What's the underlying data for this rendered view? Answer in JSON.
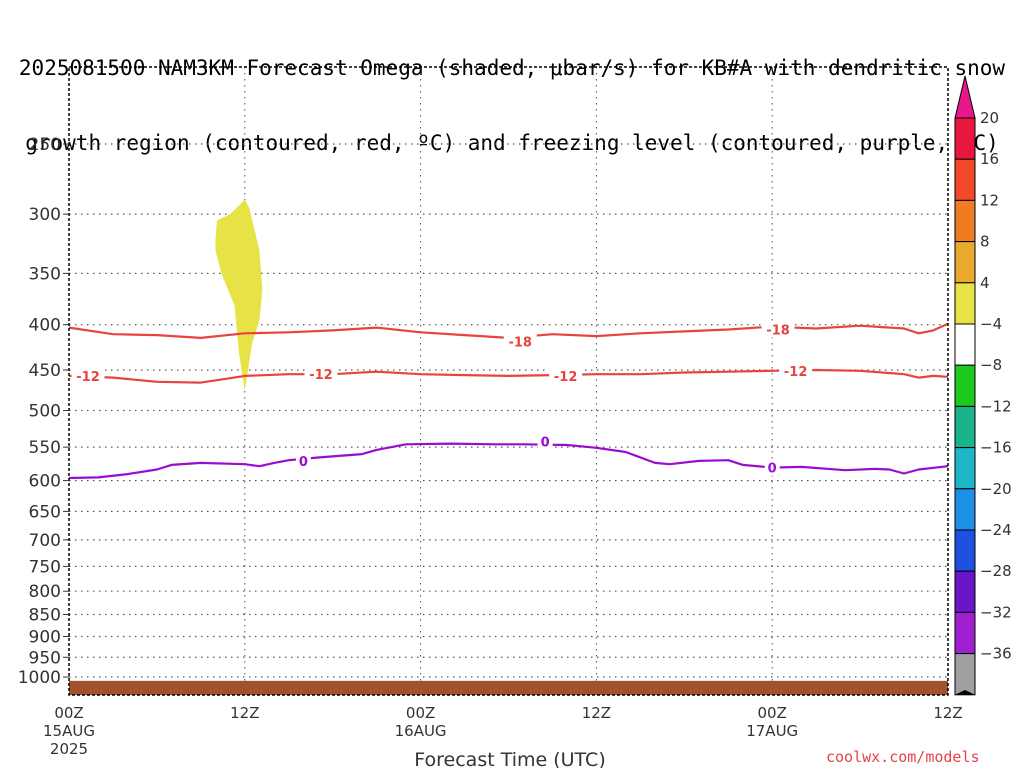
{
  "title": {
    "line1": "2025081500 NAM3KM Forecast Omega (shaded, μbar/s) for KB#A with dendritic snow",
    "line2": "growth region (contoured, red, ºC) and freezing level (contoured, purple, ºC)"
  },
  "credit": "coolwx.com/models",
  "chart_data": {
    "type": "time-height cross section",
    "xlabel": "Forecast Time (UTC)",
    "ylabel": "",
    "x_ticks": [
      {
        "t": 0,
        "line1": "00Z",
        "line2": "15AUG",
        "line3": "2025"
      },
      {
        "t": 12,
        "line1": "12Z",
        "line2": "",
        "line3": ""
      },
      {
        "t": 24,
        "line1": "00Z",
        "line2": "16AUG",
        "line3": ""
      },
      {
        "t": 36,
        "line1": "12Z",
        "line2": "",
        "line3": ""
      },
      {
        "t": 48,
        "line1": "00Z",
        "line2": "17AUG",
        "line3": ""
      },
      {
        "t": 60,
        "line1": "12Z",
        "line2": "",
        "line3": ""
      }
    ],
    "xlim_hours": [
      0,
      60
    ],
    "y_ticks_hpa": [
      250,
      300,
      350,
      400,
      450,
      500,
      550,
      600,
      650,
      700,
      750,
      800,
      850,
      900,
      950,
      1000
    ],
    "ylim_hpa": [
      200,
      1050
    ],
    "y_scale": "log-pressure (inverted)",
    "grid": true,
    "surface_fill": {
      "color": "#a0522d",
      "top_hpa": 1010
    },
    "colorbar": {
      "levels": [
        20,
        16,
        12,
        8,
        4,
        -4,
        -8,
        -12,
        -16,
        -20,
        -24,
        -28,
        -32,
        -36
      ],
      "colors": [
        "#e8173d",
        "#f04a2a",
        "#ef7b22",
        "#e9a82e",
        "#e7e246",
        "#ffffff",
        "#1fc81f",
        "#1ab38a",
        "#1eb7c7",
        "#1e8fe6",
        "#2050e0",
        "#6a16c8",
        "#a020d0",
        "#a0a0a0"
      ],
      "top_arrow_color": "#e8178b",
      "bottom_arrow_color": "#000000"
    },
    "omega_shaded": {
      "value_range": "4 to 8",
      "color": "#e7e246",
      "outline": [
        [
          10.0,
          320
        ],
        [
          10.1,
          305
        ],
        [
          11.0,
          300
        ],
        [
          12.0,
          289
        ],
        [
          12.3,
          295
        ],
        [
          13.0,
          330
        ],
        [
          13.2,
          365
        ],
        [
          13.0,
          395
        ],
        [
          12.5,
          420
        ],
        [
          12.0,
          475
        ],
        [
          11.6,
          430
        ],
        [
          11.3,
          380
        ],
        [
          11.0,
          370
        ],
        [
          10.4,
          350
        ],
        [
          10.0,
          330
        ]
      ]
    },
    "contours": [
      {
        "name": "-18",
        "color": "#e8433d",
        "labels": [
          {
            "t": 30.8,
            "p": 418
          },
          {
            "t": 48.4,
            "p": 405
          }
        ],
        "points": [
          [
            0,
            403
          ],
          [
            3,
            410
          ],
          [
            6,
            411
          ],
          [
            9,
            414
          ],
          [
            12,
            409
          ],
          [
            15,
            408
          ],
          [
            18,
            406
          ],
          [
            21,
            403
          ],
          [
            24,
            408
          ],
          [
            27,
            411
          ],
          [
            30,
            414
          ],
          [
            33,
            410
          ],
          [
            36,
            412
          ],
          [
            39,
            409
          ],
          [
            42,
            407
          ],
          [
            45,
            405
          ],
          [
            48,
            402
          ],
          [
            51,
            404
          ],
          [
            54,
            401
          ],
          [
            57,
            404
          ],
          [
            58,
            409
          ],
          [
            59,
            406
          ],
          [
            60,
            399
          ]
        ]
      },
      {
        "name": "-12",
        "color": "#e8433d",
        "labels": [
          {
            "t": 1.3,
            "p": 457
          },
          {
            "t": 17.2,
            "p": 455
          },
          {
            "t": 33.9,
            "p": 457
          },
          {
            "t": 49.6,
            "p": 451
          }
        ],
        "points": [
          [
            0,
            457
          ],
          [
            3,
            459
          ],
          [
            6,
            464
          ],
          [
            9,
            465
          ],
          [
            12,
            457
          ],
          [
            15,
            455
          ],
          [
            18,
            455
          ],
          [
            21,
            452
          ],
          [
            24,
            455
          ],
          [
            27,
            456
          ],
          [
            30,
            457
          ],
          [
            33,
            456
          ],
          [
            36,
            455
          ],
          [
            39,
            455
          ],
          [
            42,
            453
          ],
          [
            45,
            452
          ],
          [
            48,
            451
          ],
          [
            51,
            450
          ],
          [
            54,
            451
          ],
          [
            57,
            455
          ],
          [
            58,
            459
          ],
          [
            59,
            457
          ],
          [
            60,
            458
          ]
        ]
      },
      {
        "name": "0",
        "color": "#9a0ccf",
        "labels": [
          {
            "t": 16.0,
            "p": 570
          },
          {
            "t": 32.5,
            "p": 542
          },
          {
            "t": 48.0,
            "p": 580
          }
        ],
        "points": [
          [
            0,
            596
          ],
          [
            2,
            595
          ],
          [
            4,
            590
          ],
          [
            6,
            583
          ],
          [
            7,
            576
          ],
          [
            9,
            573
          ],
          [
            12,
            575
          ],
          [
            13,
            578
          ],
          [
            14,
            573
          ],
          [
            15,
            569
          ],
          [
            17,
            565
          ],
          [
            20,
            560
          ],
          [
            21,
            554
          ],
          [
            23,
            546
          ],
          [
            26,
            545
          ],
          [
            29,
            546
          ],
          [
            31,
            546
          ],
          [
            34,
            547
          ],
          [
            36,
            551
          ],
          [
            38,
            557
          ],
          [
            40,
            573
          ],
          [
            41,
            575
          ],
          [
            43,
            570
          ],
          [
            45,
            569
          ],
          [
            46,
            576
          ],
          [
            48,
            580
          ],
          [
            50,
            579
          ],
          [
            53,
            584
          ],
          [
            55,
            582
          ],
          [
            56,
            583
          ],
          [
            57,
            589
          ],
          [
            58,
            583
          ],
          [
            60,
            578
          ]
        ]
      }
    ]
  }
}
